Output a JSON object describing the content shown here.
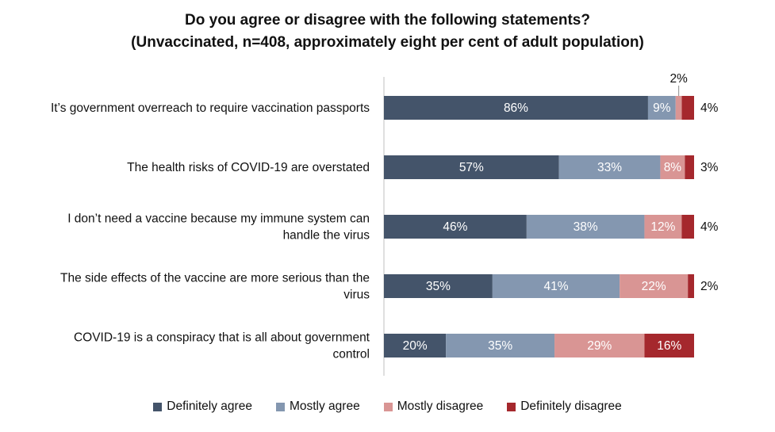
{
  "chart_data": {
    "type": "bar",
    "orientation": "horizontal",
    "stacked": true,
    "title": [
      "Do you agree or disagree with the following statements?",
      "(Unvaccinated, n=408, approximately eight per cent of adult population)"
    ],
    "categories": [
      [
        "It’s government overreach to require vaccination passports"
      ],
      [
        "The health risks of COVID-19 are overstated"
      ],
      [
        "I don’t need a vaccine because my immune system can",
        "handle the virus"
      ],
      [
        "The side effects of the vaccine are more serious than the",
        "virus"
      ],
      [
        "COVID-19 is a conspiracy that is all about government",
        "control"
      ]
    ],
    "series": [
      {
        "name": "Definitely agree",
        "color": "#44546a",
        "values": [
          86,
          57,
          46,
          35,
          20
        ]
      },
      {
        "name": "Mostly agree",
        "color": "#8497b0",
        "values": [
          9,
          33,
          38,
          41,
          35
        ]
      },
      {
        "name": "Mostly disagree",
        "color": "#d99594",
        "values": [
          2,
          8,
          12,
          22,
          29
        ]
      },
      {
        "name": "Definitely disagree",
        "color": "#a5282d",
        "values": [
          4,
          3,
          4,
          2,
          16
        ]
      }
    ],
    "value_suffix": "%",
    "legend_position": "bottom",
    "grid": false
  }
}
